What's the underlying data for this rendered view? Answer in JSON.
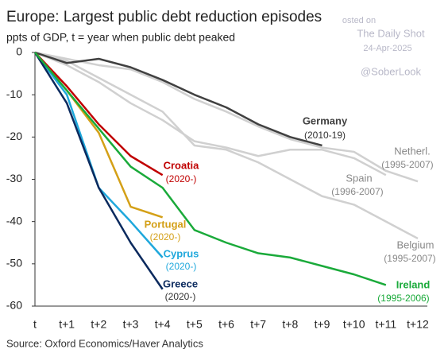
{
  "chart_data": {
    "type": "line",
    "title": "Europe: Largest public debt reduction episodes",
    "subtitle": "ppts of GDP, t = year when public debt peaked",
    "source": "Source: Oxford Economics/Haver Analytics",
    "watermark": [
      "osted on",
      "The Daily Shot",
      "24-Apr-2025",
      "@SoberLook"
    ],
    "categories": [
      "t",
      "t+1",
      "t+2",
      "t+3",
      "t+4",
      "t+5",
      "t+6",
      "t+7",
      "t+8",
      "t+9",
      "t+10",
      "t+11",
      "t+12"
    ],
    "ylim": [
      -60,
      0
    ],
    "yticks": [
      0,
      -10,
      -20,
      -30,
      -40,
      -50,
      -60
    ],
    "grid": false,
    "series": [
      {
        "name": "Netherl.",
        "period": "(1995-2007)",
        "color": "#d0d0d0",
        "values": [
          0,
          -1.5,
          -3,
          -4,
          -7,
          -11,
          -14,
          -17.5,
          -20.5,
          -22.5,
          -23.5,
          -28,
          -30.5
        ]
      },
      {
        "name": "Spain",
        "period": "(1996-2007)",
        "color": "#d0d0d0",
        "values": [
          0,
          -3,
          -7,
          -12,
          -16,
          -21,
          -22.5,
          -24.5,
          -23,
          -23,
          -25,
          -29,
          null
        ]
      },
      {
        "name": "Belgium",
        "period": "(1995-2007)",
        "color": "#d0d0d0",
        "values": [
          0,
          -2,
          -6,
          -10,
          -14,
          -22,
          -23,
          -26,
          -30,
          -34,
          -36,
          -40,
          -44
        ]
      },
      {
        "name": "Germany",
        "period": "(2010-19)",
        "color": "#404040",
        "values": [
          0,
          -2.5,
          -1.5,
          -3.5,
          -6.5,
          -10,
          -13,
          -17,
          -20,
          -22,
          null,
          null,
          null
        ]
      },
      {
        "name": "Croatia",
        "period": "(2020-)",
        "color": "#c00000",
        "values": [
          0,
          -8,
          -17,
          -24.5,
          -29,
          null,
          null,
          null,
          null,
          null,
          null,
          null,
          null
        ]
      },
      {
        "name": "Portugal",
        "period": "(2020-)",
        "color": "#d4a017",
        "values": [
          0,
          -9,
          -19,
          -36.5,
          -39,
          null,
          null,
          null,
          null,
          null,
          null,
          null,
          null
        ]
      },
      {
        "name": "Cyprus",
        "period": "(2020-)",
        "color": "#1fa8dc",
        "values": [
          0,
          -10,
          -32,
          -40,
          -48.5,
          null,
          null,
          null,
          null,
          null,
          null,
          null,
          null
        ]
      },
      {
        "name": "Greece",
        "period": "(2020-)",
        "color": "#0b2a5e",
        "values": [
          0,
          -12,
          -32,
          -45,
          -56,
          null,
          null,
          null,
          null,
          null,
          null,
          null,
          null
        ]
      },
      {
        "name": "Ireland",
        "period": "(1995-2006)",
        "color": "#1aaa3a",
        "values": [
          0,
          -9,
          -18,
          -27,
          -32,
          -42,
          -45,
          -47.5,
          -48.5,
          -50.5,
          -52.5,
          -55,
          null
        ]
      }
    ]
  }
}
